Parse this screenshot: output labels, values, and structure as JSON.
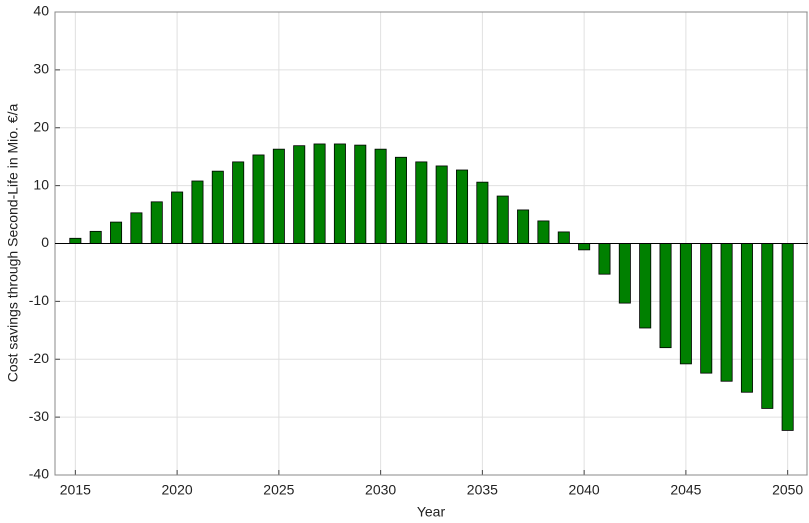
{
  "chart_data": {
    "type": "bar",
    "x_label": "Year",
    "y_label": "Cost savings through Second-Life in Mio. €/a",
    "x": [
      2015,
      2016,
      2017,
      2018,
      2019,
      2020,
      2021,
      2022,
      2023,
      2024,
      2025,
      2026,
      2027,
      2028,
      2029,
      2030,
      2031,
      2032,
      2033,
      2034,
      2035,
      2036,
      2037,
      2038,
      2039,
      2040,
      2041,
      2042,
      2043,
      2044,
      2045,
      2046,
      2047,
      2048,
      2049,
      2050
    ],
    "values": [
      0.9,
      2.1,
      3.7,
      5.3,
      7.2,
      8.9,
      10.8,
      12.5,
      14.1,
      15.3,
      16.3,
      16.9,
      17.2,
      17.2,
      17.0,
      16.3,
      14.9,
      14.1,
      13.4,
      12.7,
      10.6,
      8.2,
      5.8,
      3.9,
      2.0,
      -1.1,
      -5.3,
      -10.3,
      -14.6,
      -18.0,
      -20.8,
      -22.4,
      -23.8,
      -25.7,
      -28.5,
      -32.3
    ],
    "color": "#008000",
    "xlim": [
      2014,
      2051
    ],
    "xticks": [
      2015,
      2020,
      2025,
      2030,
      2035,
      2040,
      2045,
      2050
    ],
    "ylim": [
      -40,
      40
    ],
    "yticks": [
      -40,
      -30,
      -20,
      -10,
      0,
      10,
      20,
      30,
      40
    ],
    "grid": true
  }
}
